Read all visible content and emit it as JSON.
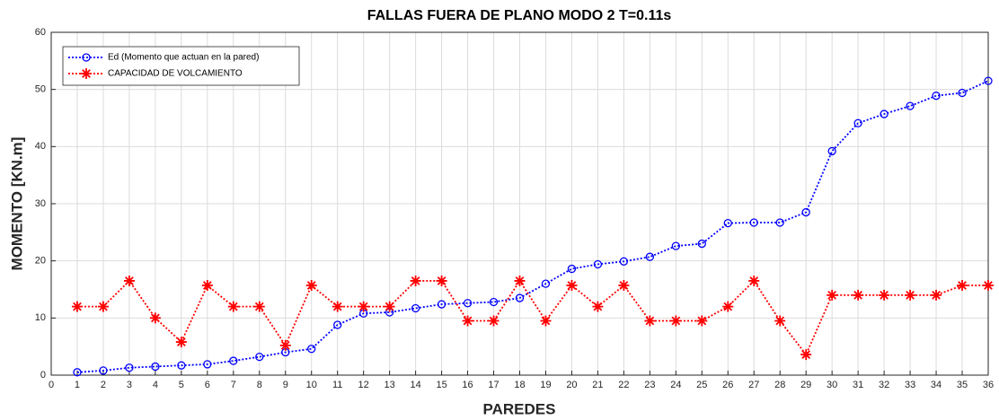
{
  "chart_data": {
    "type": "line",
    "title": "FALLAS FUERA DE PLANO MODO 2 T=0.11s",
    "xlabel": "PAREDES",
    "ylabel": "MOMENTO [KN.m]",
    "x": [
      1,
      2,
      3,
      4,
      5,
      6,
      7,
      8,
      9,
      10,
      11,
      12,
      13,
      14,
      15,
      16,
      17,
      18,
      19,
      20,
      21,
      22,
      23,
      24,
      25,
      26,
      27,
      28,
      29,
      30,
      31,
      32,
      33,
      34,
      35,
      36
    ],
    "series": [
      {
        "name": "Ed (Momento que actuan en la pared)",
        "color": "#0000ff",
        "marker": "circle",
        "values": [
          0.5,
          0.8,
          1.3,
          1.5,
          1.7,
          1.9,
          2.5,
          3.2,
          4.0,
          4.6,
          8.8,
          10.8,
          11.0,
          11.7,
          12.4,
          12.6,
          12.8,
          13.5,
          16.0,
          18.6,
          19.4,
          19.9,
          20.7,
          22.6,
          23.0,
          26.6,
          26.7,
          26.7,
          28.5,
          39.2,
          44.1,
          45.7,
          47.1,
          48.9,
          49.4,
          51.5
        ]
      },
      {
        "name": "CAPACIDAD DE VOLCAMIENTO",
        "color": "#ff0000",
        "marker": "asterisk",
        "values": [
          12,
          12,
          16.5,
          10,
          5.8,
          15.7,
          12,
          12,
          5.2,
          15.7,
          12,
          12,
          12,
          16.5,
          16.5,
          9.5,
          9.5,
          16.5,
          9.5,
          15.7,
          12,
          15.7,
          9.5,
          9.5,
          9.5,
          12,
          16.5,
          9.5,
          3.6,
          14,
          14,
          14,
          14,
          14,
          15.7,
          15.7
        ]
      }
    ],
    "xlim": [
      0,
      36
    ],
    "xticks": [
      0,
      1,
      2,
      3,
      4,
      5,
      6,
      7,
      8,
      9,
      10,
      11,
      12,
      13,
      14,
      15,
      16,
      17,
      18,
      19,
      20,
      21,
      22,
      23,
      24,
      25,
      26,
      27,
      28,
      29,
      30,
      31,
      32,
      33,
      34,
      35,
      36
    ],
    "ylim": [
      0,
      60
    ],
    "yticks": [
      0,
      10,
      20,
      30,
      40,
      50,
      60
    ],
    "grid": true,
    "legend": "upper left"
  }
}
